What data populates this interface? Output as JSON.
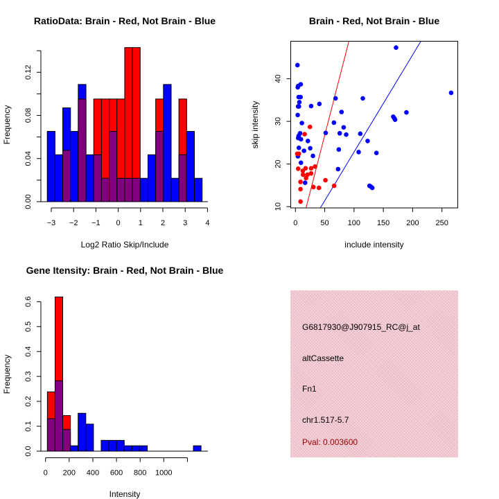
{
  "chart_data": [
    {
      "type": "bar",
      "title": "RatioData: Brain - Red, Not Brain - Blue",
      "xlabel": "Log2 Ratio Skip/Include",
      "ylabel": "Frequency",
      "bin_start": -3.18,
      "bin_width": 0.347,
      "xticks": [
        -3,
        -2,
        -1,
        0,
        1,
        2,
        3,
        4
      ],
      "yticks": [
        0,
        0.02,
        0.04,
        0.06,
        0.08,
        0.1,
        0.12,
        0.14
      ],
      "ytick_labels": [
        "0.00",
        "",
        "0.04",
        "",
        "0.08",
        "",
        "0.12",
        ""
      ],
      "ylim": [
        0,
        0.14
      ],
      "overlap_color": "#800080",
      "series": [
        {
          "name": "Not Brain",
          "color": "#0000ff",
          "values": [
            0.0652,
            0.0435,
            0.087,
            0.0652,
            0.1087,
            0.0435,
            0.0435,
            0.0217,
            0.0652,
            0.0217,
            0.0217,
            0.0217,
            0.0217,
            0.0435,
            0.0652,
            0.1087,
            0.0217,
            0.0435,
            0.0652,
            0.0217
          ]
        },
        {
          "name": "Brain",
          "color": "#ff0000",
          "values": [
            0,
            0,
            0.0476,
            0,
            0.0952,
            0,
            0.0952,
            0.0952,
            0.0952,
            0.0952,
            0.1429,
            0.1429,
            0,
            0,
            0.0952,
            0,
            0,
            0.0952,
            0,
            0
          ]
        }
      ]
    },
    {
      "type": "scatter",
      "title": "Brain - Red, Not Brain - Blue",
      "xlabel": "include intensity",
      "ylabel": "skip intensity",
      "xlim": [
        -8,
        277
      ],
      "ylim": [
        9.7,
        48.8
      ],
      "xticks": [
        0,
        50,
        100,
        150,
        200,
        250
      ],
      "yticks": [
        10,
        20,
        30,
        40
      ],
      "series": [
        {
          "name": "Not Brain",
          "color": "#0000ff",
          "line_slope": 0.228,
          "line_intercept": 0,
          "points": [
            [
              3.5,
              43.2
            ],
            [
              4.7,
              38.3
            ],
            [
              4,
              38
            ],
            [
              9.1,
              38.7
            ],
            [
              5.5,
              35.7
            ],
            [
              8.7,
              35.7
            ],
            [
              6.7,
              34.5
            ],
            [
              4.7,
              33.5
            ],
            [
              5.9,
              33.5
            ],
            [
              3.9,
              31.5
            ],
            [
              11,
              29.6
            ],
            [
              7.9,
              27.2
            ],
            [
              5.5,
              26.6
            ],
            [
              4.7,
              26.1
            ],
            [
              9.4,
              25.8
            ],
            [
              5.9,
              23.8
            ],
            [
              4.3,
              21.8
            ],
            [
              9.4,
              20.3
            ],
            [
              14.6,
              23.1
            ],
            [
              21.3,
              25.4
            ],
            [
              25.2,
              23.7
            ],
            [
              29.9,
              21.9
            ],
            [
              26.8,
              33.6
            ],
            [
              40.9,
              34.1
            ],
            [
              16.5,
              15.6
            ],
            [
              51.6,
              27.3
            ],
            [
              68.5,
              35.4
            ],
            [
              65.7,
              29.7
            ],
            [
              78.7,
              32.2
            ],
            [
              82.3,
              28.6
            ],
            [
              75.6,
              27.2
            ],
            [
              86.6,
              26.9
            ],
            [
              74,
              23.4
            ],
            [
              72.8,
              18.8
            ],
            [
              110.6,
              27.1
            ],
            [
              115,
              35.4
            ],
            [
              123.2,
              25.4
            ],
            [
              107.9,
              22.8
            ],
            [
              138.2,
              22.6
            ],
            [
              126.4,
              14.9
            ],
            [
              128.7,
              14.7
            ],
            [
              131.1,
              14.4
            ],
            [
              171.7,
              47.3
            ],
            [
              166.9,
              31.1
            ],
            [
              168.9,
              30.7
            ],
            [
              170,
              30.4
            ],
            [
              189.4,
              32.1
            ],
            [
              265.7,
              36.7
            ]
          ]
        },
        {
          "name": "Brain",
          "color": "#ff0000",
          "line_slope": 0.535,
          "line_intercept": 0,
          "points": [
            [
              3.1,
              22.4
            ],
            [
              5.9,
              22.4
            ],
            [
              24.8,
              28.7
            ],
            [
              15.7,
              27
            ],
            [
              4.7,
              18.9
            ],
            [
              17.3,
              19
            ],
            [
              12.6,
              18.4
            ],
            [
              33.5,
              19.4
            ],
            [
              26.8,
              19
            ],
            [
              20.5,
              17.5
            ],
            [
              13,
              17.5
            ],
            [
              26.8,
              17.8
            ],
            [
              18.1,
              16.7
            ],
            [
              8.7,
              15.8
            ],
            [
              51.2,
              16.2
            ],
            [
              30.7,
              14.6
            ],
            [
              40.2,
              14.4
            ],
            [
              66.1,
              14.9
            ],
            [
              8.7,
              14.1
            ],
            [
              8.7,
              11.2
            ]
          ]
        }
      ]
    },
    {
      "type": "bar",
      "title": "Gene Itensity: Brain - Red, Not Brain - Blue",
      "xlabel": "Intensity",
      "ylabel": "Frequency",
      "bin_start": 15.6,
      "bin_width": 65,
      "xticks": [
        0,
        200,
        400,
        600,
        800,
        1000,
        1200
      ],
      "xtick_labels": [
        "0",
        "200",
        "400",
        "600",
        "800",
        "1000",
        ""
      ],
      "yticks": [
        0,
        0.1,
        0.2,
        0.3,
        0.4,
        0.5,
        0.6
      ],
      "ytick_labels": [
        "0.0",
        "0.1",
        "0.2",
        "0.3",
        "0.4",
        "0.5",
        "0.6"
      ],
      "ylim": [
        0,
        0.62
      ],
      "overlap_color": "#800080",
      "series": [
        {
          "name": "Not Brain",
          "color": "#0000ff",
          "values": [
            0.1304,
            0.2826,
            0.087,
            0.0217,
            0.1522,
            0.1087,
            0,
            0.0435,
            0.0435,
            0.0435,
            0.0217,
            0.0217,
            0.0217,
            0,
            0,
            0,
            0,
            0,
            0,
            0.0217
          ]
        },
        {
          "name": "Brain",
          "color": "#ff0000",
          "values": [
            0.2381,
            0.619,
            0.1429,
            0,
            0,
            0,
            0,
            0,
            0,
            0,
            0,
            0,
            0,
            0,
            0,
            0,
            0,
            0,
            0,
            0
          ]
        }
      ]
    }
  ],
  "info_panel": {
    "probe_id": "G6817930@J907915_RC@j_at",
    "event_type": "altCassette",
    "gene": "Fn1",
    "location": "chr1.517-5.7",
    "pval": "Pval: 0.003600",
    "background_color": "#f2c4ce",
    "pval_color": "#990000"
  }
}
